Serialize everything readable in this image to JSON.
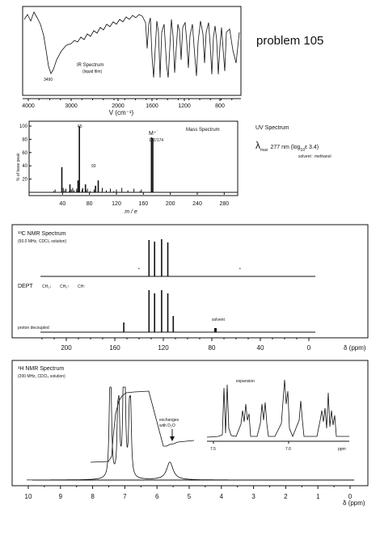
{
  "problem": {
    "label": "problem 105"
  },
  "ir": {
    "title": "IR Spectrum",
    "sample": "(liquid film)",
    "peak_label": "3490",
    "xlabel": "V (cm⁻¹)",
    "ticks_main": [
      "4000",
      "3000",
      "2000",
      "1600",
      "1200",
      "800"
    ]
  },
  "ms": {
    "title": "Mass Spectrum",
    "ylabel": "% of base peak",
    "xlabel": "m / e",
    "y_ticks": [
      "100",
      "80",
      "60",
      "40",
      "20"
    ],
    "x_ticks": [
      "40",
      "80",
      "120",
      "160",
      "200",
      "240",
      "280"
    ],
    "labels": {
      "base": "65",
      "m93": "93",
      "mplus": "M⁺˙",
      "mplus_value": "172/174"
    }
  },
  "uv": {
    "title": "UV Spectrum",
    "lambda": "λ",
    "sub": "max",
    "value": "277 nm  (log",
    "log_sub": "10",
    "eps": "ε  3.4)",
    "solvent": "solvent : methanol"
  },
  "c13": {
    "title": "¹³C NMR Spectrum",
    "conditions": "(50.0 MHz, CDCl₃ solution)",
    "dept": "DEPT",
    "dept_ch2": "CH₂↓",
    "dept_ch3": "CH₃↑",
    "dept_ch": "CH↑",
    "proton_decoupled": "proton decoupled",
    "solvent": "solvent",
    "axis_ticks": [
      "200",
      "160",
      "120",
      "80",
      "40",
      "0"
    ],
    "axis_unit": "δ (ppm)"
  },
  "h1": {
    "title": "¹H NMR Spectrum",
    "conditions": "(200 MHz, CDCl₃ solution)",
    "exchanges_1": "exchanges",
    "exchanges_2": "with D₂O",
    "expansion": "expansion",
    "exp_ticks": [
      "7.5",
      "7.0"
    ],
    "exp_unit": "ppm",
    "axis_ticks": [
      "10",
      "9",
      "8",
      "7",
      "6",
      "5",
      "4",
      "3",
      "2",
      "1",
      "0"
    ],
    "axis_unit": "δ (ppm)"
  },
  "chart_data": [
    {
      "type": "line",
      "name": "IR Spectrum",
      "xlabel": "V (cm⁻¹)",
      "x_ticks": [
        4000,
        3000,
        2000,
        1600,
        1200,
        800
      ],
      "peaks": [
        {
          "x": 3490,
          "label": "3490"
        }
      ]
    },
    {
      "type": "bar",
      "name": "Mass Spectrum",
      "xlabel": "m / e",
      "ylabel": "% of base peak",
      "xlim": [
        0,
        300
      ],
      "ylim": [
        0,
        100
      ],
      "x": [
        39,
        51,
        63,
        65,
        74,
        89,
        93,
        172,
        174
      ],
      "values": [
        38,
        12,
        18,
        100,
        12,
        10,
        18,
        83,
        82
      ],
      "annotations": [
        {
          "x": 65,
          "label": "65"
        },
        {
          "x": 93,
          "label": "93"
        },
        {
          "x": 172,
          "label": "M⁺˙ 172/174"
        }
      ]
    },
    {
      "type": "bar",
      "name": "¹³C NMR Spectrum",
      "xlabel": "δ (ppm)",
      "xlim": [
        220,
        0
      ],
      "dept_peaks": [
        131.8,
        127.2,
        121.4,
        116.3
      ],
      "proton_decoupled_peaks": [
        152.6,
        131.8,
        127.2,
        121.4,
        116.3,
        111.8,
        77.0
      ],
      "solvent_peak": 77.0
    },
    {
      "type": "line",
      "name": "¹H NMR Spectrum",
      "xlabel": "δ (ppm)",
      "xlim": [
        10,
        0
      ],
      "peaks": [
        {
          "ppm": 7.45,
          "label": "multiplet"
        },
        {
          "ppm": 7.2,
          "label": "multiplet"
        },
        {
          "ppm": 7.0,
          "label": "multiplet"
        },
        {
          "ppm": 6.85,
          "label": "multiplet"
        },
        {
          "ppm": 5.6,
          "label": "OH, exchanges with D₂O"
        }
      ]
    }
  ]
}
